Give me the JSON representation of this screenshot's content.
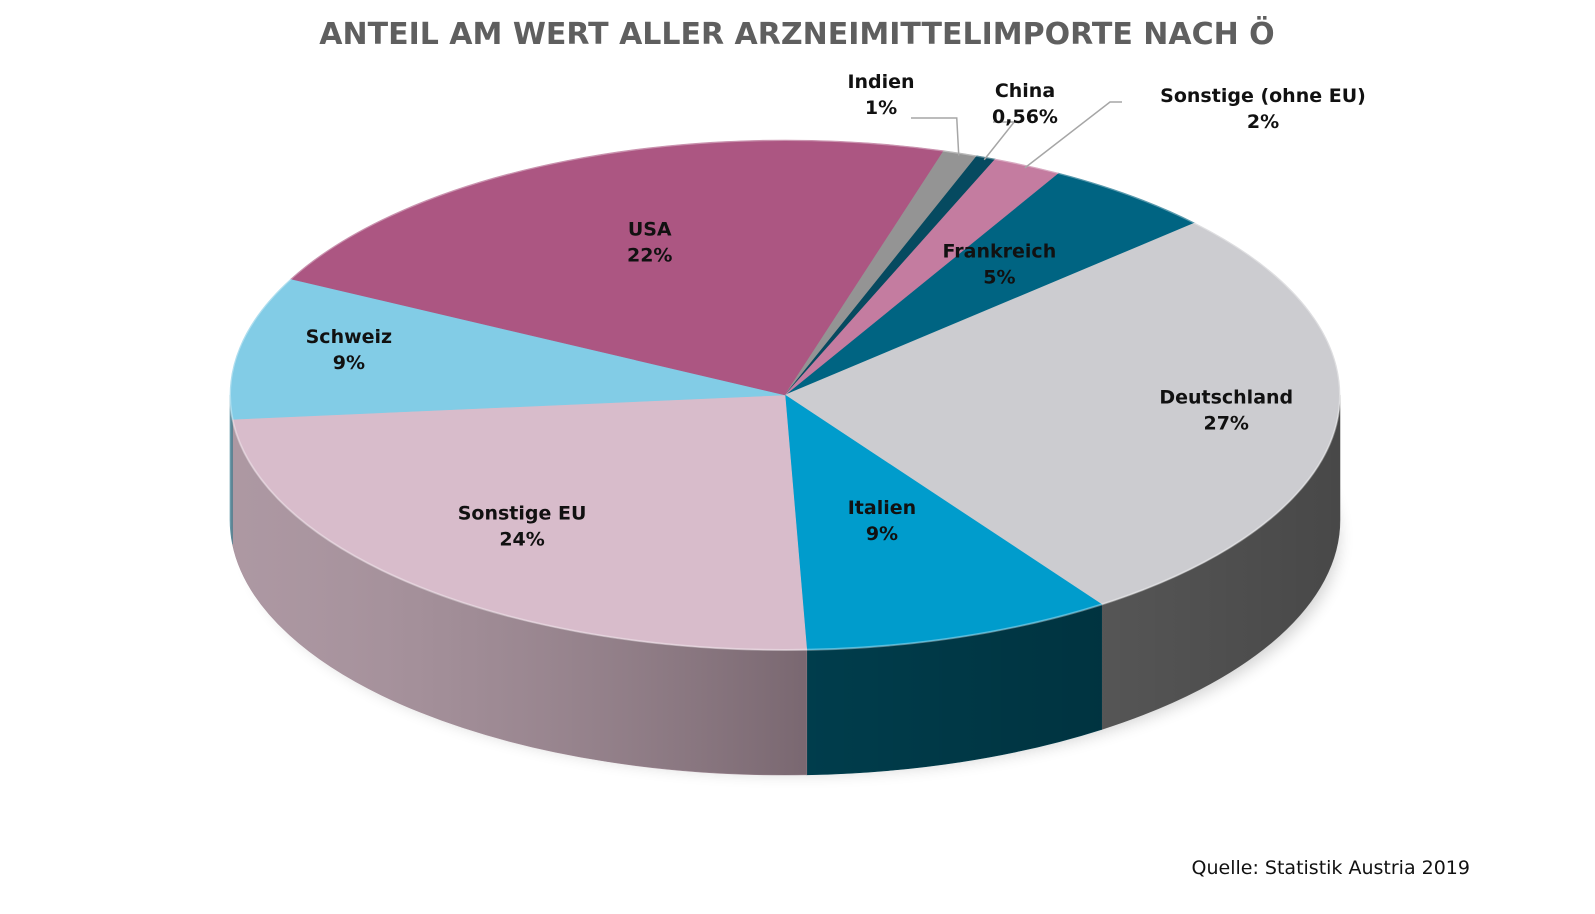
{
  "chart_data": {
    "type": "pie",
    "title": "ANTEIL AM WERT ALLER ARZNEIMITTELIMPORTE NACH Ö",
    "source": "Quelle: Statistik Austria 2019",
    "slices": [
      {
        "label": "Frankreich",
        "value": 5,
        "value_label": "5%",
        "color": "#006482",
        "side_color": "#004d64"
      },
      {
        "label": "Deutschland",
        "value": 27,
        "value_label": "27%",
        "color": "#ccccd0",
        "side_color": "#5a5a5a"
      },
      {
        "label": "Italien",
        "value": 9,
        "value_label": "9%",
        "color": "#009ccc",
        "side_color": "#004050"
      },
      {
        "label": "Sonstige EU",
        "value": 24,
        "value_label": "24%",
        "color": "#d8bccb",
        "side_color": "#a28a96"
      },
      {
        "label": "Schweiz",
        "value": 9,
        "value_label": "9%",
        "color": "#82cce6",
        "side_color": "#5a90a3"
      },
      {
        "label": "USA",
        "value": 22,
        "value_label": "22%",
        "color": "#ac5682",
        "side_color": "#7a3c5c"
      },
      {
        "label": "Indien",
        "value": 1,
        "value_label": "1%",
        "color": "#949494",
        "side_color": "#666666"
      },
      {
        "label": "China",
        "value": 0.56,
        "value_label": "0,56%",
        "color": "#064a60",
        "side_color": "#033040"
      },
      {
        "label": "Sonstige (ohne EU)",
        "value": 2,
        "value_label": "2%",
        "color": "#c47ca0",
        "side_color": "#8a5670"
      }
    ]
  }
}
